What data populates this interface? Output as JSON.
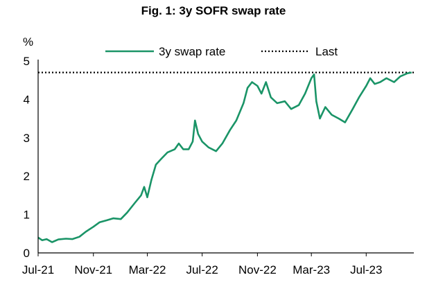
{
  "chart_data": {
    "type": "line",
    "title": "Fig. 1: 3y SOFR swap rate",
    "ylabel": "%",
    "xlabel": "",
    "ylim": [
      0,
      5
    ],
    "yticks": [
      "0",
      "1",
      "2",
      "3",
      "4",
      "5"
    ],
    "xlim": [
      "2021-07-01",
      "2023-10-15"
    ],
    "xticks": [
      {
        "label": "Jul-21",
        "date": "2021-07-01"
      },
      {
        "label": "Nov-21",
        "date": "2021-11-01"
      },
      {
        "label": "Mar-22",
        "date": "2022-03-01"
      },
      {
        "label": "Jul-22",
        "date": "2022-07-01"
      },
      {
        "label": "Nov-22",
        "date": "2022-11-01"
      },
      {
        "label": "Mar-23",
        "date": "2023-03-01"
      },
      {
        "label": "Jul-23",
        "date": "2023-07-01"
      }
    ],
    "legend_position": "top-center",
    "series": [
      {
        "name": "3y swap rate",
        "color": "#1a9467",
        "style": "solid",
        "points": [
          [
            "2021-07-01",
            0.4
          ],
          [
            "2021-07-10",
            0.33
          ],
          [
            "2021-07-20",
            0.36
          ],
          [
            "2021-08-01",
            0.28
          ],
          [
            "2021-08-15",
            0.35
          ],
          [
            "2021-09-01",
            0.37
          ],
          [
            "2021-09-15",
            0.36
          ],
          [
            "2021-10-01",
            0.42
          ],
          [
            "2021-10-15",
            0.55
          ],
          [
            "2021-11-01",
            0.68
          ],
          [
            "2021-11-15",
            0.8
          ],
          [
            "2021-12-01",
            0.85
          ],
          [
            "2021-12-15",
            0.9
          ],
          [
            "2022-01-01",
            0.88
          ],
          [
            "2022-01-15",
            1.05
          ],
          [
            "2022-02-01",
            1.3
          ],
          [
            "2022-02-15",
            1.5
          ],
          [
            "2022-02-22",
            1.72
          ],
          [
            "2022-03-01",
            1.45
          ],
          [
            "2022-03-10",
            1.9
          ],
          [
            "2022-03-20",
            2.3
          ],
          [
            "2022-04-01",
            2.45
          ],
          [
            "2022-04-15",
            2.62
          ],
          [
            "2022-05-01",
            2.7
          ],
          [
            "2022-05-10",
            2.85
          ],
          [
            "2022-05-20",
            2.7
          ],
          [
            "2022-06-01",
            2.7
          ],
          [
            "2022-06-10",
            2.9
          ],
          [
            "2022-06-15",
            3.45
          ],
          [
            "2022-06-22",
            3.1
          ],
          [
            "2022-07-01",
            2.9
          ],
          [
            "2022-07-15",
            2.75
          ],
          [
            "2022-08-01",
            2.65
          ],
          [
            "2022-08-15",
            2.85
          ],
          [
            "2022-09-01",
            3.2
          ],
          [
            "2022-09-15",
            3.45
          ],
          [
            "2022-10-01",
            3.9
          ],
          [
            "2022-10-10",
            4.3
          ],
          [
            "2022-10-20",
            4.45
          ],
          [
            "2022-11-01",
            4.35
          ],
          [
            "2022-11-10",
            4.15
          ],
          [
            "2022-11-20",
            4.45
          ],
          [
            "2022-12-01",
            4.05
          ],
          [
            "2022-12-15",
            3.9
          ],
          [
            "2023-01-01",
            3.95
          ],
          [
            "2023-01-15",
            3.75
          ],
          [
            "2023-02-01",
            3.85
          ],
          [
            "2023-02-15",
            4.15
          ],
          [
            "2023-03-01",
            4.55
          ],
          [
            "2023-03-07",
            4.65
          ],
          [
            "2023-03-12",
            3.95
          ],
          [
            "2023-03-20",
            3.5
          ],
          [
            "2023-04-01",
            3.8
          ],
          [
            "2023-04-15",
            3.6
          ],
          [
            "2023-05-01",
            3.5
          ],
          [
            "2023-05-15",
            3.4
          ],
          [
            "2023-06-01",
            3.75
          ],
          [
            "2023-06-15",
            4.05
          ],
          [
            "2023-07-01",
            4.35
          ],
          [
            "2023-07-10",
            4.55
          ],
          [
            "2023-07-20",
            4.4
          ],
          [
            "2023-08-01",
            4.45
          ],
          [
            "2023-08-15",
            4.55
          ],
          [
            "2023-09-01",
            4.45
          ],
          [
            "2023-09-15",
            4.6
          ],
          [
            "2023-10-01",
            4.68
          ],
          [
            "2023-10-10",
            4.7
          ]
        ]
      },
      {
        "name": "Last",
        "color": "#000000",
        "style": "dotted",
        "value": 4.7
      }
    ]
  }
}
